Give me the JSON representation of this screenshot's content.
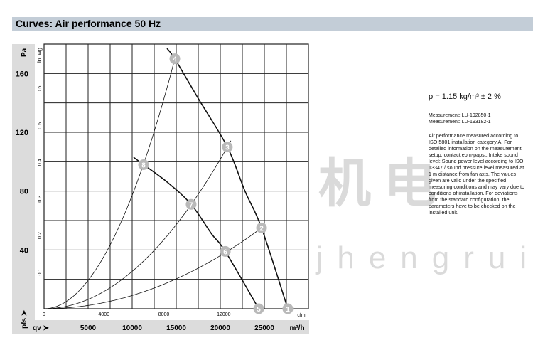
{
  "header": {
    "title": "Curves: Air performance 50 Hz"
  },
  "side": {
    "density": "ρ = 1.15 kg/m³ ± 2 %",
    "measurement1": "Measurement: LU-192850-1",
    "measurement2": "Measurement: LU-193182-1",
    "note": "Air performance measured according to ISO 5801 installation category A. For detailed information on the measurement setup, contact ebm-papst. Intake sound level: Sound power level according to ISO 13347 / sound pressure level measured at 1 m distance from fan axis. The values given are valid under the specified measuring conditions and may vary due to conditions of installation. For deviations from the standard configuration, the parameters have to be checked on the installed unit."
  },
  "watermark": {
    "cn": "恒瑞宏晟机电",
    "url": "www.bjhengrui.cn"
  },
  "chart_data": {
    "type": "line",
    "title": "Curves: Air performance 50 Hz",
    "xlabel": "qv",
    "xunit": "m³/h",
    "xunit_secondary": "cfm",
    "ylabel": "pfs",
    "yunit": "Pa",
    "yunit_secondary": "in. wg",
    "xlim": [
      0,
      30000
    ],
    "ylim": [
      0,
      180
    ],
    "grid": true,
    "x_ticks": [
      "5000",
      "10000",
      "15000",
      "20000",
      "25000"
    ],
    "x_ticks_values": [
      5000,
      10000,
      15000,
      20000,
      25000
    ],
    "x2_ticks": [
      "0",
      "4000",
      "8000",
      "12000"
    ],
    "x2_ticks_values": [
      0,
      4000,
      8000,
      12000
    ],
    "y_ticks": [
      "40",
      "80",
      "120",
      "160"
    ],
    "y_ticks_values": [
      40,
      80,
      120,
      160
    ],
    "y2_ticks": [
      "0.1",
      "0.2",
      "0.3",
      "0.4",
      "0.5",
      "0.6"
    ],
    "y2_ticks_values": [
      0.1,
      0.2,
      0.3,
      0.4,
      0.5,
      0.6
    ],
    "fan_curves": [
      {
        "points": [
          [
            13950,
            177
          ],
          [
            14840,
            170
          ],
          [
            17500,
            143
          ],
          [
            20800,
            110
          ],
          [
            22800,
            80
          ],
          [
            24680,
            55
          ],
          [
            27660,
            0
          ]
        ]
      },
      {
        "points": [
          [
            10160,
            103
          ],
          [
            11290,
            98
          ],
          [
            14000,
            86
          ],
          [
            16690,
            71
          ],
          [
            19000,
            51
          ],
          [
            20570,
            39
          ],
          [
            24360,
            0
          ]
        ]
      }
    ],
    "system_curves": [
      {
        "through": [
          14840,
          170
        ]
      },
      {
        "through": [
          20800,
          110
        ]
      },
      {
        "through": [
          24680,
          55
        ]
      }
    ],
    "operating_points": [
      {
        "label": "1",
        "q": 27660,
        "p": 0
      },
      {
        "label": "2",
        "q": 24680,
        "p": 55
      },
      {
        "label": "3",
        "q": 20800,
        "p": 110
      },
      {
        "label": "4",
        "q": 14840,
        "p": 170
      },
      {
        "label": "5",
        "q": 24360,
        "p": 0
      },
      {
        "label": "6",
        "q": 20570,
        "p": 39
      },
      {
        "label": "7",
        "q": 16690,
        "p": 71
      },
      {
        "label": "8",
        "q": 11290,
        "p": 98
      }
    ]
  }
}
